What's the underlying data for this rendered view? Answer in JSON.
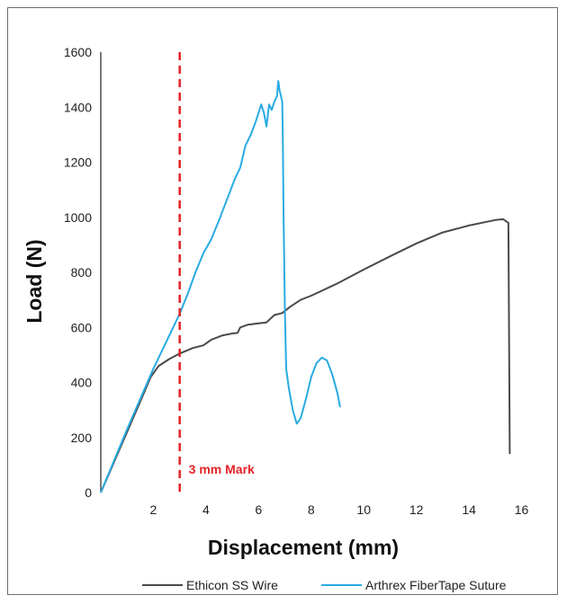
{
  "chart_data": {
    "type": "line",
    "title": "",
    "xlabel": "Displacement (mm)",
    "ylabel": "Load (N)",
    "xlim": [
      0,
      16.7
    ],
    "ylim": [
      0,
      1600
    ],
    "x_ticks": [
      2,
      4,
      6,
      8,
      10,
      12,
      14,
      16
    ],
    "y_ticks": [
      0,
      200,
      400,
      600,
      800,
      1000,
      1200,
      1400,
      1600
    ],
    "grid": false,
    "legend_position": "bottom",
    "series": [
      {
        "name": "Ethicon SS Wire",
        "color": "#4a4a4a",
        "points": [
          [
            0,
            0
          ],
          [
            0.5,
            110
          ],
          [
            1,
            220
          ],
          [
            1.5,
            330
          ],
          [
            1.9,
            420
          ],
          [
            2.2,
            460
          ],
          [
            2.6,
            485
          ],
          [
            3,
            505
          ],
          [
            3.5,
            525
          ],
          [
            3.9,
            535
          ],
          [
            4.2,
            555
          ],
          [
            4.6,
            570
          ],
          [
            5,
            578
          ],
          [
            5.2,
            580
          ],
          [
            5.3,
            600
          ],
          [
            5.6,
            610
          ],
          [
            6,
            615
          ],
          [
            6.3,
            618
          ],
          [
            6.6,
            645
          ],
          [
            6.9,
            652
          ],
          [
            7.2,
            675
          ],
          [
            7.6,
            700
          ],
          [
            8,
            715
          ],
          [
            9,
            760
          ],
          [
            10,
            810
          ],
          [
            11,
            858
          ],
          [
            12,
            905
          ],
          [
            13,
            945
          ],
          [
            14,
            970
          ],
          [
            15,
            990
          ],
          [
            15.3,
            993
          ],
          [
            15.5,
            980
          ],
          [
            15.55,
            140
          ]
        ]
      },
      {
        "name": "Arthrex FiberTape Suture",
        "color": "#29abe2",
        "points": [
          [
            0,
            0
          ],
          [
            0.5,
            115
          ],
          [
            1,
            230
          ],
          [
            1.5,
            340
          ],
          [
            2,
            450
          ],
          [
            2.5,
            550
          ],
          [
            3,
            650
          ],
          [
            3.3,
            720
          ],
          [
            3.6,
            800
          ],
          [
            3.9,
            870
          ],
          [
            4.2,
            920
          ],
          [
            4.5,
            990
          ],
          [
            4.7,
            1040
          ],
          [
            4.9,
            1090
          ],
          [
            5.1,
            1140
          ],
          [
            5.3,
            1180
          ],
          [
            5.5,
            1260
          ],
          [
            5.7,
            1300
          ],
          [
            5.9,
            1350
          ],
          [
            6.1,
            1410
          ],
          [
            6.2,
            1380
          ],
          [
            6.3,
            1330
          ],
          [
            6.4,
            1410
          ],
          [
            6.5,
            1390
          ],
          [
            6.6,
            1420
          ],
          [
            6.7,
            1440
          ],
          [
            6.75,
            1495
          ],
          [
            6.8,
            1460
          ],
          [
            6.85,
            1440
          ],
          [
            6.9,
            1420
          ],
          [
            6.92,
            1300
          ],
          [
            6.95,
            1000
          ],
          [
            7.0,
            650
          ],
          [
            7.05,
            450
          ],
          [
            7.15,
            380
          ],
          [
            7.3,
            300
          ],
          [
            7.45,
            250
          ],
          [
            7.6,
            270
          ],
          [
            7.8,
            340
          ],
          [
            8.0,
            420
          ],
          [
            8.2,
            470
          ],
          [
            8.4,
            490
          ],
          [
            8.6,
            480
          ],
          [
            8.8,
            430
          ],
          [
            9.0,
            360
          ],
          [
            9.1,
            310
          ]
        ]
      }
    ],
    "annotations": [
      {
        "type": "vline",
        "x": 3,
        "color": "#e32227",
        "style": "dashed",
        "label": "3 mm Mark"
      }
    ]
  }
}
